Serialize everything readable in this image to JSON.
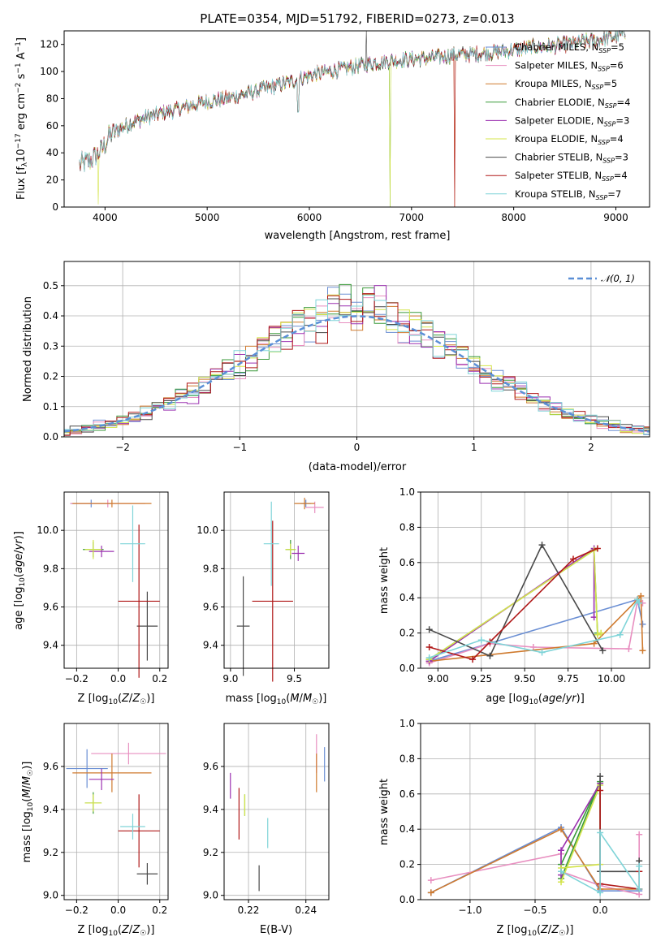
{
  "title": "PLATE=0354, MJD=51792, FIBERID=0273, z=0.013",
  "colors": {
    "Chabrier MILES": "#6b8fd4",
    "Salpeter MILES": "#e88fc0",
    "Kroupa MILES": "#cf7a2e",
    "Chabrier ELODIE": "#3a9a3a",
    "Salpeter ELODIE": "#9b30b0",
    "Kroupa ELODIE": "#d4e44a",
    "Chabrier STELIB": "#4a4a4a",
    "Salpeter STELIB": "#b01818",
    "Kroupa STELIB": "#7fd4d8",
    "normal": "#5b8fd6"
  },
  "chart_data": [
    {
      "id": "spectrum",
      "type": "line",
      "title": "PLATE=0354, MJD=51792, FIBERID=0273, z=0.013",
      "xlabel": "wavelength [Angstrom, rest frame]",
      "ylabel": "Flux [f",
      "xlim": [
        3600,
        9330
      ],
      "ylim": [
        0,
        130
      ],
      "xticks": [
        "4000",
        "5000",
        "6000",
        "7000",
        "8000",
        "9000"
      ],
      "yticks": [
        "0",
        "20",
        "40",
        "60",
        "80",
        "100",
        "120"
      ],
      "grid": false,
      "legend": "upper right",
      "series": [
        {
          "name": "Chabrier MILES",
          "nssp": "5"
        },
        {
          "name": "Salpeter MILES",
          "nssp": "6"
        },
        {
          "name": "Kroupa MILES",
          "nssp": "5"
        },
        {
          "name": "Chabrier ELODIE",
          "nssp": "4"
        },
        {
          "name": "Salpeter ELODIE",
          "nssp": "3"
        },
        {
          "name": "Kroupa ELODIE",
          "nssp": "4"
        },
        {
          "name": "Chabrier STELIB",
          "nssp": "3"
        },
        {
          "name": "Salpeter STELIB",
          "nssp": "4"
        },
        {
          "name": "Kroupa STELIB",
          "nssp": "7"
        }
      ],
      "continuum": {
        "x": [
          3750,
          3850,
          3950,
          4050,
          4150,
          4250,
          4400,
          4600,
          4800,
          5000,
          5200,
          5400,
          5600,
          5800,
          6000,
          6200,
          6400,
          6600,
          6800,
          7000,
          7200,
          7400,
          7600,
          7800,
          8000,
          8200,
          8400,
          8600,
          8800,
          9000,
          9100
        ],
        "y": [
          31,
          34,
          40,
          53,
          58,
          62,
          66,
          70,
          74,
          78,
          80,
          84,
          88,
          92,
          97,
          100,
          103,
          106,
          108,
          109,
          110,
          112,
          113,
          114,
          116,
          118,
          119,
          121,
          123,
          126,
          128
        ]
      }
    },
    {
      "id": "residuals",
      "type": "histogram",
      "xlabel": "(data-model)/error",
      "ylabel": "Normed distribution",
      "xlim": [
        -2.5,
        2.5
      ],
      "ylim": [
        0,
        0.58
      ],
      "xticks": [
        "−2",
        "−1",
        "0",
        "1",
        "2"
      ],
      "yticks": [
        "0.0",
        "0.1",
        "0.2",
        "0.3",
        "0.4",
        "0.5"
      ],
      "grid": true,
      "legend": "upper right",
      "reference": {
        "name": "N(0,1)",
        "mean": 0,
        "sigma": 1
      },
      "bin_width": 0.1
    },
    {
      "id": "z-age",
      "type": "scatter",
      "xlabel": "Z [log10(Z/Z☉)]",
      "ylabel": "age  [log10(age/yr)]",
      "xlim": [
        -0.26,
        0.24
      ],
      "ylim": [
        9.28,
        10.2
      ],
      "xticks": [
        "−0.2",
        "0.0",
        "0.2"
      ],
      "yticks": [
        "9.4",
        "9.6",
        "9.8",
        "10.0"
      ],
      "points": [
        {
          "series": "Chabrier MILES",
          "x": -0.13,
          "y": 10.14,
          "xerr": 0.1,
          "yerr": 0.02
        },
        {
          "series": "Salpeter MILES",
          "x": -0.05,
          "y": 10.14,
          "xerr": 0.18,
          "yerr": 0.02
        },
        {
          "series": "Kroupa MILES",
          "x": -0.03,
          "y": 10.14,
          "xerr": 0.19,
          "yerr": 0.02
        },
        {
          "series": "Chabrier ELODIE",
          "x": -0.12,
          "y": 9.9,
          "xerr": 0.05,
          "yerr": 0.04
        },
        {
          "series": "Salpeter ELODIE",
          "x": -0.08,
          "y": 9.89,
          "xerr": 0.06,
          "yerr": 0.03
        },
        {
          "series": "Kroupa ELODIE",
          "x": -0.12,
          "y": 9.9,
          "xerr": 0.04,
          "yerr": 0.05
        },
        {
          "series": "Chabrier STELIB",
          "x": 0.14,
          "y": 9.5,
          "xerr": 0.05,
          "yerr": 0.18
        },
        {
          "series": "Salpeter STELIB",
          "x": 0.1,
          "y": 9.63,
          "xerr": 0.1,
          "yerr": 0.4
        },
        {
          "series": "Kroupa STELIB",
          "x": 0.07,
          "y": 9.93,
          "xerr": 0.06,
          "yerr": 0.2
        }
      ]
    },
    {
      "id": "mass-age",
      "type": "scatter",
      "xlabel": "mass [log10(M/M☉)]",
      "ylabel": "",
      "xlim": [
        8.95,
        9.77
      ],
      "ylim": [
        9.28,
        10.2
      ],
      "xticks": [
        "9.0",
        "9.5"
      ],
      "yticks": [
        "9.4",
        "9.6",
        "9.8",
        "10.0"
      ],
      "points": [
        {
          "series": "Chabrier MILES",
          "x": 9.59,
          "y": 10.14,
          "xerr": 0.04,
          "yerr": 0.02
        },
        {
          "series": "Salpeter MILES",
          "x": 9.66,
          "y": 10.12,
          "xerr": 0.07,
          "yerr": 0.03
        },
        {
          "series": "Kroupa MILES",
          "x": 9.58,
          "y": 10.14,
          "xerr": 0.08,
          "yerr": 0.03
        },
        {
          "series": "Chabrier ELODIE",
          "x": 9.47,
          "y": 9.9,
          "xerr": 0.04,
          "yerr": 0.05
        },
        {
          "series": "Salpeter ELODIE",
          "x": 9.53,
          "y": 9.88,
          "xerr": 0.05,
          "yerr": 0.04
        },
        {
          "series": "Kroupa ELODIE",
          "x": 9.47,
          "y": 9.9,
          "xerr": 0.04,
          "yerr": 0.03
        },
        {
          "series": "Chabrier STELIB",
          "x": 9.1,
          "y": 9.5,
          "xerr": 0.05,
          "yerr": 0.26
        },
        {
          "series": "Salpeter STELIB",
          "x": 9.33,
          "y": 9.63,
          "xerr": 0.16,
          "yerr": 0.42
        },
        {
          "series": "Kroupa STELIB",
          "x": 9.32,
          "y": 9.93,
          "xerr": 0.06,
          "yerr": 0.22
        }
      ]
    },
    {
      "id": "weights-age",
      "type": "line",
      "xlabel": "age  [log10(age/yr)]",
      "ylabel": "mass weight",
      "xlim": [
        8.9,
        10.22
      ],
      "ylim": [
        0,
        1.0
      ],
      "xticks": [
        "9.00",
        "9.25",
        "9.50",
        "9.75",
        "10.00"
      ],
      "yticks": [
        "0.0",
        "0.2",
        "0.4",
        "0.6",
        "0.8",
        "1.0"
      ],
      "grid": true,
      "series": [
        {
          "name": "Chabrier MILES",
          "x": [
            8.95,
            10.15,
            10.18
          ],
          "y": [
            0.04,
            0.39,
            0.25
          ]
        },
        {
          "name": "Salpeter MILES",
          "x": [
            8.95,
            9.3,
            9.55,
            10.1,
            10.15,
            10.18
          ],
          "y": [
            0.03,
            0.14,
            0.12,
            0.11,
            0.38,
            0.37
          ]
        },
        {
          "name": "Kroupa MILES",
          "x": [
            8.95,
            9.9,
            10.15,
            10.17,
            10.18
          ],
          "y": [
            0.04,
            0.14,
            0.39,
            0.41,
            0.1
          ]
        },
        {
          "name": "Chabrier ELODIE",
          "x": [
            8.95,
            9.9,
            9.92
          ],
          "y": [
            0.05,
            0.67,
            0.2
          ]
        },
        {
          "name": "Salpeter ELODIE",
          "x": [
            8.95,
            9.9,
            9.9
          ],
          "y": [
            0.04,
            0.68,
            0.29
          ]
        },
        {
          "name": "Kroupa ELODIE",
          "x": [
            8.95,
            9.9,
            9.92,
            9.94
          ],
          "y": [
            0.05,
            0.67,
            0.19,
            0.2
          ]
        },
        {
          "name": "Chabrier STELIB",
          "x": [
            8.95,
            9.3,
            9.6,
            9.95
          ],
          "y": [
            0.22,
            0.07,
            0.7,
            0.1
          ]
        },
        {
          "name": "Salpeter STELIB",
          "x": [
            8.95,
            9.2,
            9.3,
            9.78,
            9.92
          ],
          "y": [
            0.12,
            0.05,
            0.15,
            0.62,
            0.68
          ]
        },
        {
          "name": "Kroupa STELIB",
          "x": [
            8.95,
            9.25,
            9.6,
            10.05,
            10.15,
            10.16
          ],
          "y": [
            0.06,
            0.16,
            0.09,
            0.19,
            0.39,
            0.37
          ]
        }
      ]
    },
    {
      "id": "z-mass",
      "type": "scatter",
      "xlabel": "Z [log10(Z/Z☉)]",
      "ylabel": "mass [log10(M/M☉)]",
      "xlim": [
        -0.26,
        0.24
      ],
      "ylim": [
        8.98,
        9.8
      ],
      "xticks": [
        "−0.2",
        "0.0",
        "0.2"
      ],
      "yticks": [
        "9.0",
        "9.2",
        "9.4",
        "9.6"
      ],
      "points": [
        {
          "series": "Chabrier MILES",
          "x": -0.15,
          "y": 9.59,
          "xerr": 0.1,
          "yerr": 0.09
        },
        {
          "series": "Salpeter MILES",
          "x": 0.05,
          "y": 9.66,
          "xerr": 0.18,
          "yerr": 0.05
        },
        {
          "series": "Kroupa MILES",
          "x": -0.03,
          "y": 9.57,
          "xerr": 0.19,
          "yerr": 0.09
        },
        {
          "series": "Chabrier ELODIE",
          "x": -0.12,
          "y": 9.43,
          "xerr": 0.04,
          "yerr": 0.05
        },
        {
          "series": "Salpeter ELODIE",
          "x": -0.08,
          "y": 9.54,
          "xerr": 0.06,
          "yerr": 0.05
        },
        {
          "series": "Kroupa ELODIE",
          "x": -0.12,
          "y": 9.43,
          "xerr": 0.04,
          "yerr": 0.04
        },
        {
          "series": "Chabrier STELIB",
          "x": 0.14,
          "y": 9.1,
          "xerr": 0.05,
          "yerr": 0.05
        },
        {
          "series": "Salpeter STELIB",
          "x": 0.1,
          "y": 9.3,
          "xerr": 0.1,
          "yerr": 0.17
        },
        {
          "series": "Kroupa STELIB",
          "x": 0.07,
          "y": 9.32,
          "xerr": 0.06,
          "yerr": 0.06
        }
      ]
    },
    {
      "id": "ebv",
      "type": "scatter",
      "xlabel": "E(B-V)",
      "ylabel": "",
      "xlim": [
        0.2115,
        0.248
      ],
      "ylim": [
        8.98,
        9.8
      ],
      "xticks": [
        "0.22",
        "0.24"
      ],
      "yticks": [
        "9.0",
        "9.2",
        "9.4",
        "9.6"
      ],
      "points": [
        {
          "series": "Chabrier MILES",
          "x": 0.2465,
          "y": 9.61,
          "yerr": 0.08
        },
        {
          "series": "Salpeter MILES",
          "x": 0.2437,
          "y": 9.66,
          "yerr": 0.09
        },
        {
          "series": "Kroupa MILES",
          "x": 0.2437,
          "y": 9.57,
          "yerr": 0.09
        },
        {
          "series": "Chabrier ELODIE",
          "x": 0.2187,
          "y": 9.42,
          "yerr": 0.05
        },
        {
          "series": "Salpeter ELODIE",
          "x": 0.2137,
          "y": 9.51,
          "yerr": 0.06
        },
        {
          "series": "Kroupa ELODIE",
          "x": 0.2187,
          "y": 9.42,
          "yerr": 0.05
        },
        {
          "series": "Chabrier STELIB",
          "x": 0.2237,
          "y": 9.08,
          "yerr": 0.06
        },
        {
          "series": "Salpeter STELIB",
          "x": 0.2167,
          "y": 9.38,
          "yerr": 0.12
        },
        {
          "series": "Kroupa STELIB",
          "x": 0.2267,
          "y": 9.29,
          "yerr": 0.07
        }
      ]
    },
    {
      "id": "weights-z",
      "type": "line",
      "xlabel": "Z [log10(Z/Z☉)]",
      "ylabel": "mass weight",
      "xlim": [
        -1.38,
        0.38
      ],
      "ylim": [
        0,
        1.0
      ],
      "xticks": [
        "−1.0",
        "−0.5",
        "0.0"
      ],
      "yticks": [
        "0.0",
        "0.2",
        "0.4",
        "0.6",
        "0.8",
        "1.0"
      ],
      "grid": true,
      "series": [
        {
          "name": "Chabrier MILES",
          "x": [
            -1.3,
            -0.3,
            0.0,
            0.3
          ],
          "y": [
            0.04,
            0.41,
            0.05,
            0.05
          ]
        },
        {
          "name": "Salpeter MILES",
          "x": [
            -1.3,
            -0.3,
            -0.3,
            0.0,
            0.3,
            0.3
          ],
          "y": [
            0.11,
            0.26,
            0.16,
            0.08,
            0.03,
            0.37
          ]
        },
        {
          "name": "Kroupa MILES",
          "x": [
            -1.3,
            -0.3,
            0.0,
            0.3
          ],
          "y": [
            0.04,
            0.4,
            0.06,
            0.06
          ]
        },
        {
          "name": "Chabrier ELODIE",
          "x": [
            -0.3,
            0.0,
            -0.3
          ],
          "y": [
            0.12,
            0.67,
            0.2
          ]
        },
        {
          "name": "Salpeter ELODIE",
          "x": [
            -0.3,
            -0.3,
            0.0
          ],
          "y": [
            0.14,
            0.28,
            0.66
          ]
        },
        {
          "name": "Kroupa ELODIE",
          "x": [
            -0.3,
            0.0,
            0.0,
            -0.3
          ],
          "y": [
            0.1,
            0.65,
            0.2,
            0.18
          ]
        },
        {
          "name": "Chabrier STELIB",
          "x": [
            0.0,
            0.0,
            0.3,
            0.3
          ],
          "y": [
            0.7,
            0.16,
            0.16,
            0.22
          ]
        },
        {
          "name": "Salpeter STELIB",
          "x": [
            0.0,
            0.0,
            0.3,
            0.3
          ],
          "y": [
            0.62,
            0.09,
            0.06,
            0.16
          ]
        },
        {
          "name": "Kroupa STELIB",
          "x": [
            -0.3,
            0.0,
            0.0,
            0.3,
            0.3
          ],
          "y": [
            0.16,
            0.04,
            0.38,
            0.06,
            0.19
          ]
        }
      ]
    }
  ]
}
